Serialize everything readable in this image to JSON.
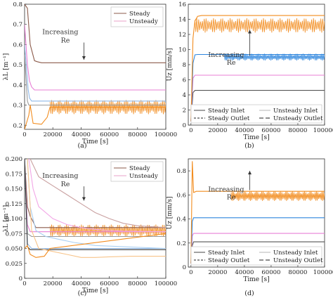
{
  "captions": [
    "(a)",
    "(b)",
    "(c)",
    "(d)"
  ],
  "chart_data": [
    {
      "type": "line",
      "panel": "a",
      "xlabel": "Time [s]",
      "ylabel": "λL [m⁻¹]",
      "xlim": [
        0,
        100000
      ],
      "ylim": [
        0.18,
        0.8
      ],
      "xticks": [
        0,
        20000,
        40000,
        60000,
        80000,
        100000
      ],
      "yticks": [
        0.2,
        0.3,
        0.4,
        0.5,
        0.6,
        0.7,
        0.8
      ],
      "legend": {
        "position": "top-right",
        "entries": [
          "Steady",
          "Unsteady"
        ]
      },
      "annotation": {
        "text_line1": "Increasing",
        "text_line2": "Re",
        "arrow": "down",
        "x": 42000,
        "y_from": 0.61,
        "y_to": 0.525
      },
      "series": [
        {
          "name": "Steady",
          "color": "#8B5A4A",
          "style": "solid",
          "x": [
            0,
            2000,
            4000,
            7000,
            9000,
            12000,
            100000
          ],
          "y": [
            0.8,
            0.78,
            0.6,
            0.52,
            0.515,
            0.51,
            0.51
          ]
        },
        {
          "color": "#E87FD6",
          "style": "solid",
          "x": [
            0,
            2000,
            3500,
            5000,
            7000,
            100000
          ],
          "y": [
            0.7,
            0.5,
            0.42,
            0.39,
            0.375,
            0.375
          ]
        },
        {
          "color": "#8FB8E8",
          "style": "solid",
          "x": [
            0,
            2500,
            3500,
            5000,
            100000
          ],
          "y": [
            0.6,
            0.38,
            0.335,
            0.32,
            0.32
          ]
        },
        {
          "color": "#9A9A9A",
          "style": "solid",
          "x": [
            0,
            2000,
            3000,
            100000
          ],
          "y": [
            0.55,
            0.32,
            0.3,
            0.3
          ]
        },
        {
          "color": "#F28C1E",
          "style": "solid",
          "x": [
            0,
            3000,
            4000,
            6000,
            12000,
            16000,
            18000,
            100000
          ],
          "y": [
            0.18,
            0.25,
            0.3,
            0.21,
            0.205,
            0.24,
            0.29,
            0.29
          ]
        }
      ],
      "oscillation": {
        "color": "#F28C1E",
        "x_start": 18000,
        "x_end": 100000,
        "center": 0.29,
        "amplitude": 0.035
      }
    },
    {
      "type": "line",
      "panel": "b",
      "xlabel": "Time [s]",
      "ylabel": "Uz [mm/s]",
      "xlim": [
        -2000,
        100000
      ],
      "ylim": [
        0,
        16
      ],
      "xticks": [
        0,
        20000,
        40000,
        60000,
        80000,
        100000
      ],
      "yticks": [
        0,
        2,
        4,
        6,
        8,
        10,
        12,
        14,
        16
      ],
      "legend": {
        "position": "bottom-right",
        "entries": [
          "Steady Inlet",
          "Unsteady Inlet",
          "Steady Outlet",
          "Unsteady Outlet"
        ]
      },
      "annotation": {
        "text_line1": "Increasing",
        "text_line2": "Re",
        "arrow": "up",
        "x": 44000,
        "y_from": 9.2,
        "y_to": 12.6
      },
      "series": [
        {
          "name": "Steady Inlet",
          "color": "#555555",
          "style": "solid",
          "x": [
            0,
            1500,
            3000,
            100000
          ],
          "y": [
            0.5,
            4.3,
            4.6,
            4.6
          ]
        },
        {
          "color": "#E87FD6",
          "style": "solid",
          "x": [
            0,
            1500,
            3000,
            100000
          ],
          "y": [
            0.5,
            6.2,
            6.6,
            6.6
          ]
        },
        {
          "color": "#2E86DE",
          "style": "solid",
          "x": [
            0,
            1500,
            3000,
            5000,
            100000
          ],
          "y": [
            0.5,
            8.2,
            9.3,
            9.35,
            9.35
          ]
        },
        {
          "color": "#F28C1E",
          "style": "solid",
          "x": [
            0,
            1500,
            3000,
            5000,
            8000,
            100000
          ],
          "y": [
            0.5,
            11.5,
            13.8,
            14.4,
            14.5,
            14.5
          ]
        }
      ],
      "oscillations": [
        {
          "color": "#2E86DE",
          "x_start": 25000,
          "x_end": 100000,
          "center": 9.0,
          "amplitude": 0.45
        },
        {
          "color": "#F28C1E",
          "x_start": 3000,
          "x_end": 100000,
          "center": 13.2,
          "amplitude": 0.95
        }
      ]
    },
    {
      "type": "line",
      "panel": "c",
      "xlabel": "Time [s]",
      "ylabel": "λL [m⁻¹]",
      "xlim": [
        0,
        100000
      ],
      "ylim": [
        0,
        0.2
      ],
      "xticks": [
        0,
        20000,
        40000,
        60000,
        80000,
        100000
      ],
      "yticks": [
        0,
        0.025,
        0.05,
        0.075,
        0.1,
        0.125,
        0.15,
        0.175,
        0.2
      ],
      "ytick_labels": [
        "0",
        "0.025",
        "0.050",
        "0.075",
        "0.100",
        "0.125",
        "0.150",
        "0.175",
        "0.200"
      ],
      "legend": {
        "position": "top-right",
        "entries": [
          "Steady",
          "Unsteady"
        ]
      },
      "annotation": {
        "text_line1": "Increasing",
        "text_line2": "Re",
        "arrow": "down",
        "x": 42000,
        "y_from": 0.154,
        "y_to": 0.13
      },
      "series": [
        {
          "name": "Steady",
          "color": "#8B5A4A",
          "style": "solid",
          "x": [
            0,
            2000,
            4000,
            6000,
            8000,
            100000
          ],
          "y": [
            0.2,
            0.12,
            0.104,
            0.095,
            0.085,
            0.085
          ]
        },
        {
          "color": "#E87FD6",
          "style": "solid",
          "x": [
            0,
            2000,
            4000,
            6000,
            100000
          ],
          "y": [
            0.2,
            0.09,
            0.078,
            0.078,
            0.078
          ]
        },
        {
          "color": "#9A9A9A",
          "style": "solid",
          "x": [
            0,
            2000,
            5000,
            100000
          ],
          "y": [
            0.2,
            0.075,
            0.07,
            0.07
          ]
        },
        {
          "color": "#8FB8E8",
          "style": "solid",
          "x": [
            0,
            2000,
            5000,
            100000
          ],
          "y": [
            0.2,
            0.058,
            0.05,
            0.05
          ]
        },
        {
          "color": "#333333",
          "style": "solid",
          "x": [
            0,
            2000,
            4000,
            100000
          ],
          "y": [
            0.2,
            0.053,
            0.048,
            0.048
          ]
        },
        {
          "name": "Unsteady",
          "color": "#C9A0A0",
          "style": "solid",
          "x": [
            4000,
            10000,
            20000,
            30000,
            40000,
            50000,
            60000,
            70000,
            80000,
            100000
          ],
          "y": [
            0.2,
            0.17,
            0.155,
            0.14,
            0.125,
            0.11,
            0.1,
            0.092,
            0.088,
            0.085
          ]
        },
        {
          "color": "#F2A6E6",
          "style": "solid",
          "x": [
            3000,
            6000,
            10000,
            20000,
            30000,
            40000,
            50000,
            60000,
            70000,
            100000
          ],
          "y": [
            0.2,
            0.15,
            0.12,
            0.1,
            0.09,
            0.085,
            0.082,
            0.08,
            0.079,
            0.078
          ]
        },
        {
          "color": "#A9CFF2",
          "style": "solid",
          "x": [
            2000,
            4000,
            8000,
            15000,
            25000,
            35000,
            50000,
            100000
          ],
          "y": [
            0.2,
            0.12,
            0.08,
            0.07,
            0.065,
            0.06,
            0.055,
            0.05
          ]
        },
        {
          "color": "#F7C48A",
          "style": "solid",
          "x": [
            2000,
            5000,
            10000,
            20000,
            30000,
            40000,
            50000,
            60000,
            75000,
            100000
          ],
          "y": [
            0.2,
            0.08,
            0.05,
            0.045,
            0.04,
            0.035,
            0.035,
            0.036,
            0.037,
            0.037
          ]
        },
        {
          "color": "#F28C1E",
          "style": "solid",
          "x": [
            0,
            2000,
            4000,
            8000,
            14000,
            18000,
            100000
          ],
          "y": [
            0.05,
            0.055,
            0.04,
            0.035,
            0.037,
            0.05,
            0.075
          ]
        }
      ],
      "oscillation": {
        "color": "#F28C1E",
        "x_start": 18000,
        "x_end": 100000,
        "center": 0.08,
        "amplitude": 0.01
      }
    },
    {
      "type": "line",
      "panel": "d",
      "xlabel": "Time [s]",
      "ylabel": "Uz [mm/s]",
      "xlim": [
        -2000,
        100000
      ],
      "ylim": [
        0,
        0.9
      ],
      "xticks": [
        0,
        20000,
        40000,
        60000,
        80000,
        100000
      ],
      "yticks": [
        0,
        0.2,
        0.4,
        0.6,
        0.8
      ],
      "ytick_labels": [
        "0",
        "0.2",
        "0.4",
        "0.6",
        "0.8"
      ],
      "legend": {
        "position": "bottom-right",
        "entries": [
          "Steady Inlet",
          "Unsteady Inlet",
          "Steady Outlet",
          "Unsteady Outlet"
        ]
      },
      "annotation": {
        "text_line1": "Increasing",
        "text_line2": "Re",
        "arrow": "up",
        "x": 44000,
        "y_from": 0.64,
        "y_to": 0.8
      },
      "series": [
        {
          "name": "Steady Inlet",
          "color": "#555555",
          "style": "solid",
          "x": [
            0,
            1000,
            2000,
            100000
          ],
          "y": [
            0.03,
            0.18,
            0.21,
            0.21
          ]
        },
        {
          "color": "#E87FD6",
          "style": "solid",
          "x": [
            0,
            1000,
            2000,
            100000
          ],
          "y": [
            0.03,
            0.26,
            0.28,
            0.28
          ]
        },
        {
          "color": "#2E86DE",
          "style": "solid",
          "x": [
            0,
            1000,
            2000,
            100000
          ],
          "y": [
            0.03,
            0.38,
            0.41,
            0.41
          ]
        },
        {
          "color": "#F28C1E",
          "style": "solid",
          "x": [
            0,
            1000,
            2000,
            4000,
            100000
          ],
          "y": [
            0.03,
            0.88,
            0.62,
            0.63,
            0.63
          ]
        }
      ],
      "oscillation": {
        "color": "#F28C1E",
        "x_start": 30000,
        "x_end": 100000,
        "center": 0.59,
        "amplitude": 0.04
      }
    }
  ]
}
